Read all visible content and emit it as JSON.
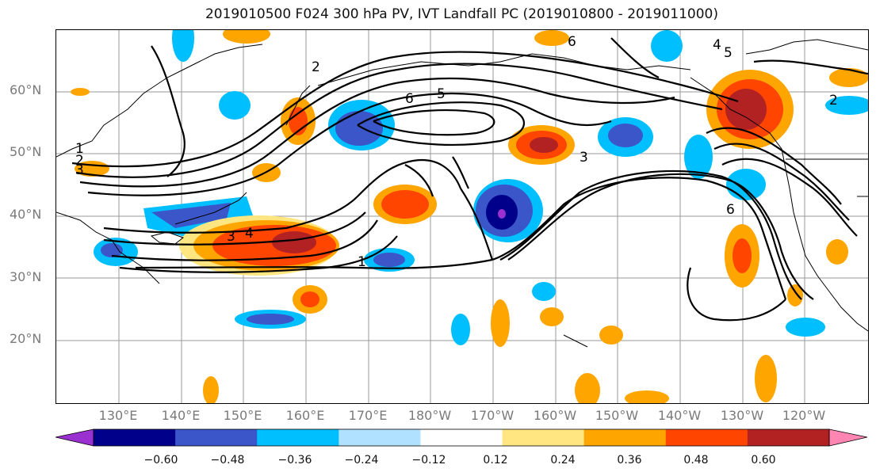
{
  "title": "2019010500 F024 300 hPa PV, IVT Landfall PC (2019010800 - 2019011000)",
  "lat_labels": [
    "60°N",
    "50°N",
    "40°N",
    "30°N",
    "20°N"
  ],
  "lon_labels": [
    "130°E",
    "140°E",
    "150°E",
    "160°E",
    "170°E",
    "180°W",
    "170°W",
    "160°W",
    "150°W",
    "140°W",
    "130°W",
    "120°W"
  ],
  "colorbar": {
    "ticks": [
      "−0.60",
      "−0.48",
      "−0.36",
      "−0.24",
      "−0.12",
      "0.12",
      "0.24",
      "0.36",
      "0.48",
      "0.60"
    ],
    "colors": [
      "#9b30d0",
      "#00008b",
      "#3a56c9",
      "#00bfff",
      "#b0e2ff",
      "#ffffff",
      "#ffe680",
      "#ffa500",
      "#ff4500",
      "#b22222",
      "#ff85b3"
    ]
  },
  "contour_labels": [
    "1",
    "2",
    "3",
    "4",
    "5",
    "6"
  ],
  "colors": {
    "neg_strong": "#00008b",
    "neg": "#3a56c9",
    "neg_light": "#00bfff",
    "pos_light": "#ffa500",
    "pos": "#ff4500",
    "pos_strong": "#b22222"
  }
}
